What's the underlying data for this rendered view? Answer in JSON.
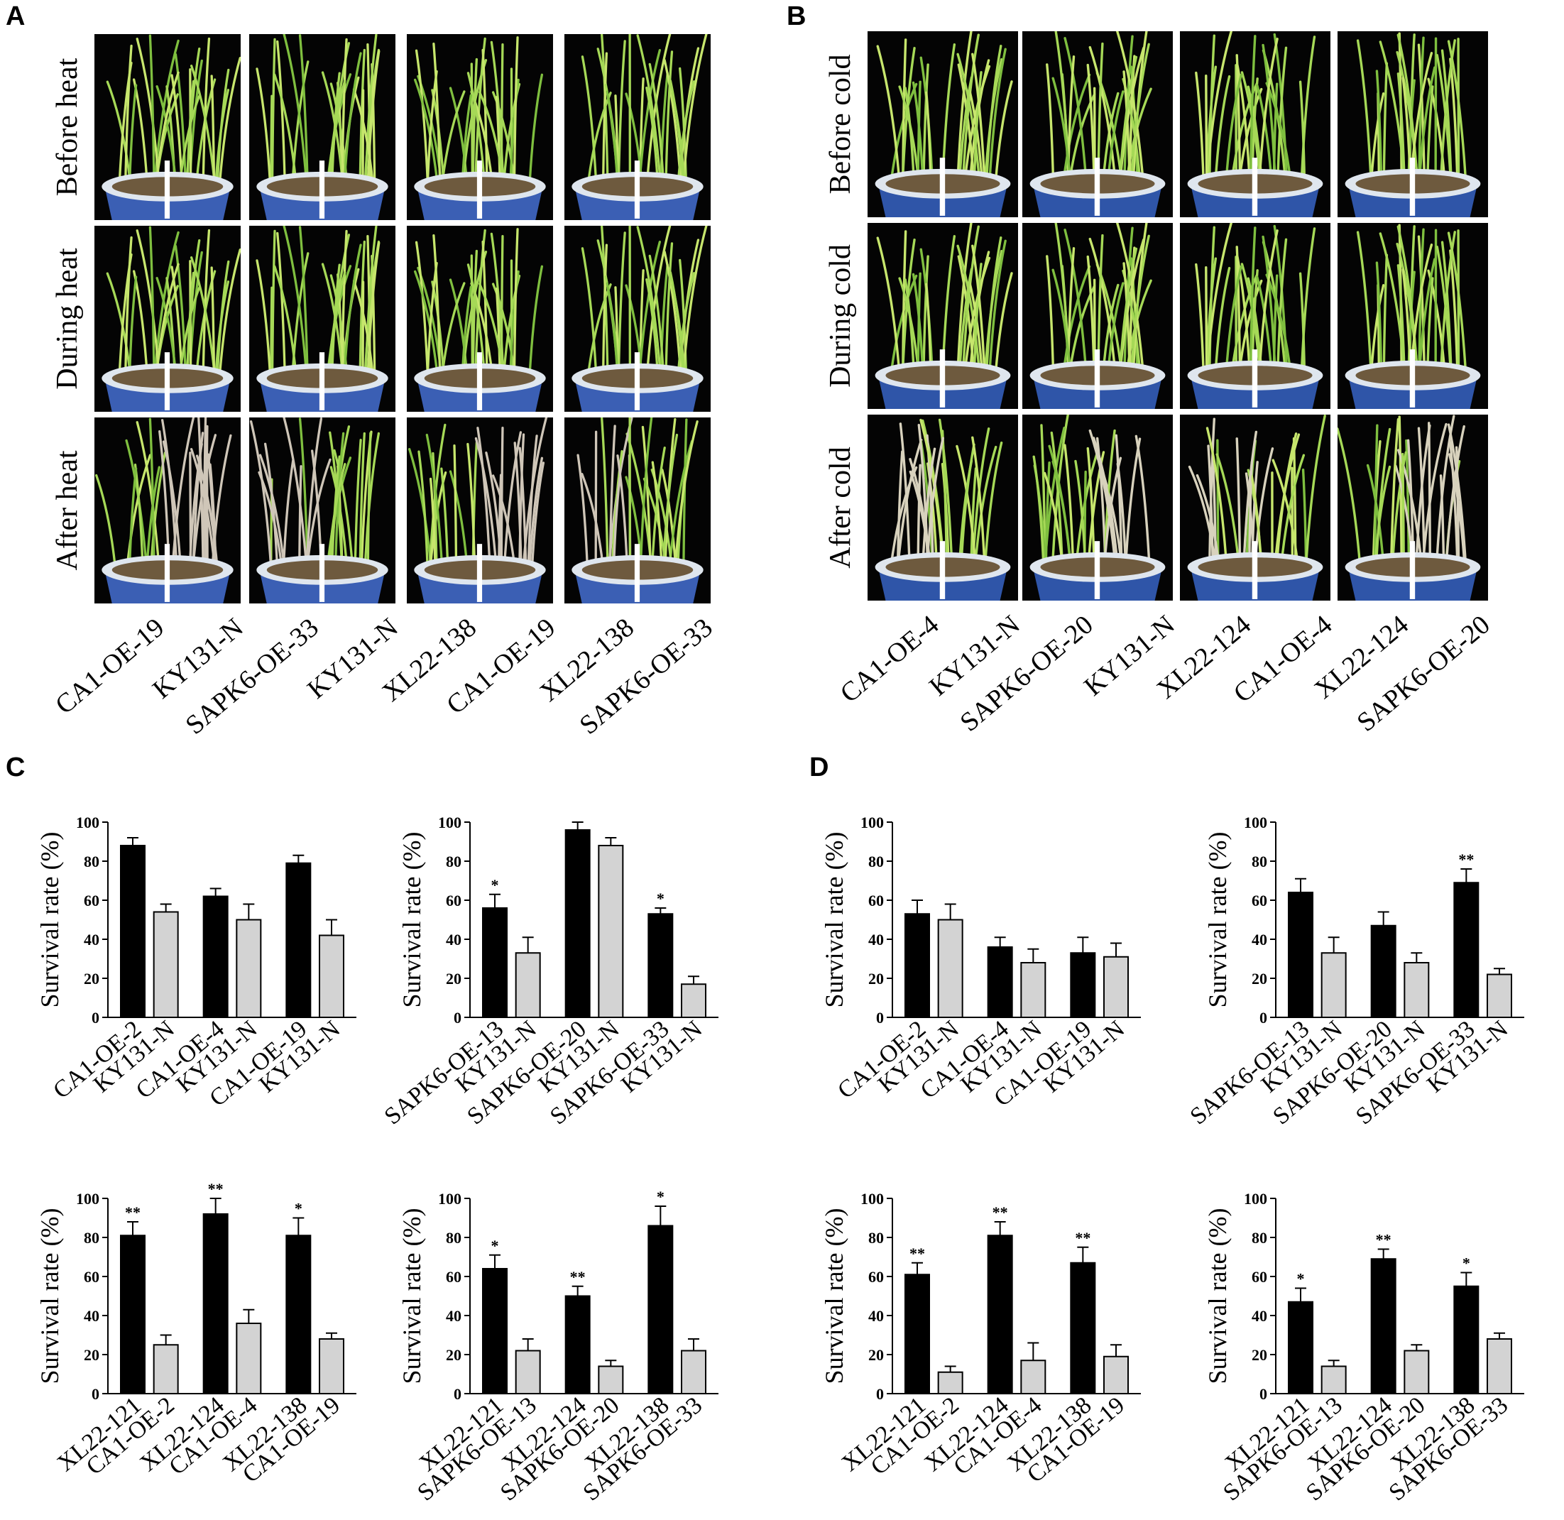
{
  "panels": {
    "A": {
      "letter": "A",
      "rows": [
        "Before heat",
        "During heat",
        "After heat"
      ],
      "columns": [
        "CA1-OE-19",
        "KY131-N",
        "SAPK6-OE-33",
        "KY131-N",
        "XL22-138",
        "CA1-OE-19",
        "XL22-138",
        "SAPK6-OE-33"
      ]
    },
    "B": {
      "letter": "B",
      "rows": [
        "Before cold",
        "During cold",
        "After cold"
      ],
      "columns": [
        "CA1-OE-4",
        "KY131-N",
        "SAPK6-OE-20",
        "KY131-N",
        "XL22-124",
        "CA1-OE-4",
        "XL22-124",
        "SAPK6-OE-20"
      ]
    },
    "C": {
      "letter": "C"
    },
    "D": {
      "letter": "D"
    }
  },
  "chart_data": [
    {
      "panel": "C",
      "type": "bar",
      "ylabel": "Survival rate (%)",
      "ylim": [
        0,
        100
      ],
      "yticks": [
        0,
        20,
        40,
        60,
        80,
        100
      ],
      "categories": [
        "CA1-OE-2",
        "KY131-N",
        "CA1-OE-4",
        "KY131-N",
        "CA1-OE-19",
        "KY131-N"
      ],
      "values": [
        88,
        54,
        62,
        50,
        79,
        42
      ],
      "errors": [
        4,
        4,
        4,
        8,
        4,
        8
      ],
      "significance": [
        "",
        "",
        "",
        "",
        "",
        ""
      ],
      "bar_colors": [
        "#000000",
        "#d3d3d3",
        "#000000",
        "#d3d3d3",
        "#000000",
        "#d3d3d3"
      ]
    },
    {
      "panel": "C",
      "type": "bar",
      "ylabel": "Survival rate (%)",
      "ylim": [
        0,
        100
      ],
      "yticks": [
        0,
        20,
        40,
        60,
        80,
        100
      ],
      "categories": [
        "SAPK6-OE-13",
        "KY131-N",
        "SAPK6-OE-20",
        "KY131-N",
        "SAPK6-OE-33",
        "KY131-N"
      ],
      "values": [
        56,
        33,
        96,
        88,
        53,
        17
      ],
      "errors": [
        7,
        8,
        4,
        4,
        3,
        4
      ],
      "significance": [
        "*",
        "",
        "",
        "",
        "*",
        ""
      ],
      "bar_colors": [
        "#000000",
        "#d3d3d3",
        "#000000",
        "#d3d3d3",
        "#000000",
        "#d3d3d3"
      ]
    },
    {
      "panel": "D",
      "type": "bar",
      "ylabel": "Survival rate (%)",
      "ylim": [
        0,
        100
      ],
      "yticks": [
        0,
        20,
        40,
        60,
        80,
        100
      ],
      "categories": [
        "CA1-OE-2",
        "KY131-N",
        "CA1-OE-4",
        "KY131-N",
        "CA1-OE-19",
        "KY131-N"
      ],
      "values": [
        53,
        50,
        36,
        28,
        33,
        31
      ],
      "errors": [
        7,
        8,
        5,
        7,
        8,
        7
      ],
      "significance": [
        "",
        "",
        "",
        "",
        "",
        ""
      ],
      "bar_colors": [
        "#000000",
        "#d3d3d3",
        "#000000",
        "#d3d3d3",
        "#000000",
        "#d3d3d3"
      ]
    },
    {
      "panel": "D",
      "type": "bar",
      "ylabel": "Survival rate (%)",
      "ylim": [
        0,
        100
      ],
      "yticks": [
        0,
        20,
        40,
        60,
        80,
        100
      ],
      "categories": [
        "SAPK6-OE-13",
        "KY131-N",
        "SAPK6-OE-20",
        "KY131-N",
        "SAPK6-OE-33",
        "KY131-N"
      ],
      "values": [
        64,
        33,
        47,
        28,
        69,
        22
      ],
      "errors": [
        7,
        8,
        7,
        5,
        7,
        3
      ],
      "significance": [
        "",
        "",
        "",
        "",
        "**",
        ""
      ],
      "bar_colors": [
        "#000000",
        "#d3d3d3",
        "#000000",
        "#d3d3d3",
        "#000000",
        "#d3d3d3"
      ]
    },
    {
      "panel": "C",
      "type": "bar",
      "ylabel": "Survival rate (%)",
      "ylim": [
        0,
        100
      ],
      "yticks": [
        0,
        20,
        40,
        60,
        80,
        100
      ],
      "categories": [
        "XL22-121",
        "CA1-OE-2",
        "XL22-124",
        "CA1-OE-4",
        "XL22-138",
        "CA1-OE-19"
      ],
      "values": [
        81,
        25,
        92,
        36,
        81,
        28
      ],
      "errors": [
        7,
        5,
        8,
        7,
        9,
        3
      ],
      "significance": [
        "**",
        "",
        "**",
        "",
        "*",
        ""
      ],
      "bar_colors": [
        "#000000",
        "#d3d3d3",
        "#000000",
        "#d3d3d3",
        "#000000",
        "#d3d3d3"
      ]
    },
    {
      "panel": "C",
      "type": "bar",
      "ylabel": "Survival rate (%)",
      "ylim": [
        0,
        100
      ],
      "yticks": [
        0,
        20,
        40,
        60,
        80,
        100
      ],
      "categories": [
        "XL22-121",
        "SAPK6-OE-13",
        "XL22-124",
        "SAPK6-OE-20",
        "XL22-138",
        "SAPK6-OE-33"
      ],
      "values": [
        64,
        22,
        50,
        14,
        86,
        22
      ],
      "errors": [
        7,
        6,
        5,
        3,
        10,
        6
      ],
      "significance": [
        "*",
        "",
        "**",
        "",
        "*",
        ""
      ],
      "bar_colors": [
        "#000000",
        "#d3d3d3",
        "#000000",
        "#d3d3d3",
        "#000000",
        "#d3d3d3"
      ]
    },
    {
      "panel": "D",
      "type": "bar",
      "ylabel": "Survival rate (%)",
      "ylim": [
        0,
        100
      ],
      "yticks": [
        0,
        20,
        40,
        60,
        80,
        100
      ],
      "categories": [
        "XL22-121",
        "CA1-OE-2",
        "XL22-124",
        "CA1-OE-4",
        "XL22-138",
        "CA1-OE-19"
      ],
      "values": [
        61,
        11,
        81,
        17,
        67,
        19
      ],
      "errors": [
        6,
        3,
        7,
        9,
        8,
        6
      ],
      "significance": [
        "**",
        "",
        "**",
        "",
        "**",
        ""
      ],
      "bar_colors": [
        "#000000",
        "#d3d3d3",
        "#000000",
        "#d3d3d3",
        "#000000",
        "#d3d3d3"
      ]
    },
    {
      "panel": "D",
      "type": "bar",
      "ylabel": "Survival rate (%)",
      "ylim": [
        0,
        100
      ],
      "yticks": [
        0,
        20,
        40,
        60,
        80,
        100
      ],
      "categories": [
        "XL22-121",
        "SAPK6-OE-13",
        "XL22-124",
        "SAPK6-OE-20",
        "XL22-138",
        "SAPK6-OE-33"
      ],
      "values": [
        47,
        14,
        69,
        22,
        55,
        28
      ],
      "errors": [
        7,
        3,
        5,
        3,
        7,
        3
      ],
      "significance": [
        "*",
        "",
        "**",
        "",
        "*",
        ""
      ],
      "bar_colors": [
        "#000000",
        "#d3d3d3",
        "#000000",
        "#d3d3d3",
        "#000000",
        "#d3d3d3"
      ]
    }
  ]
}
